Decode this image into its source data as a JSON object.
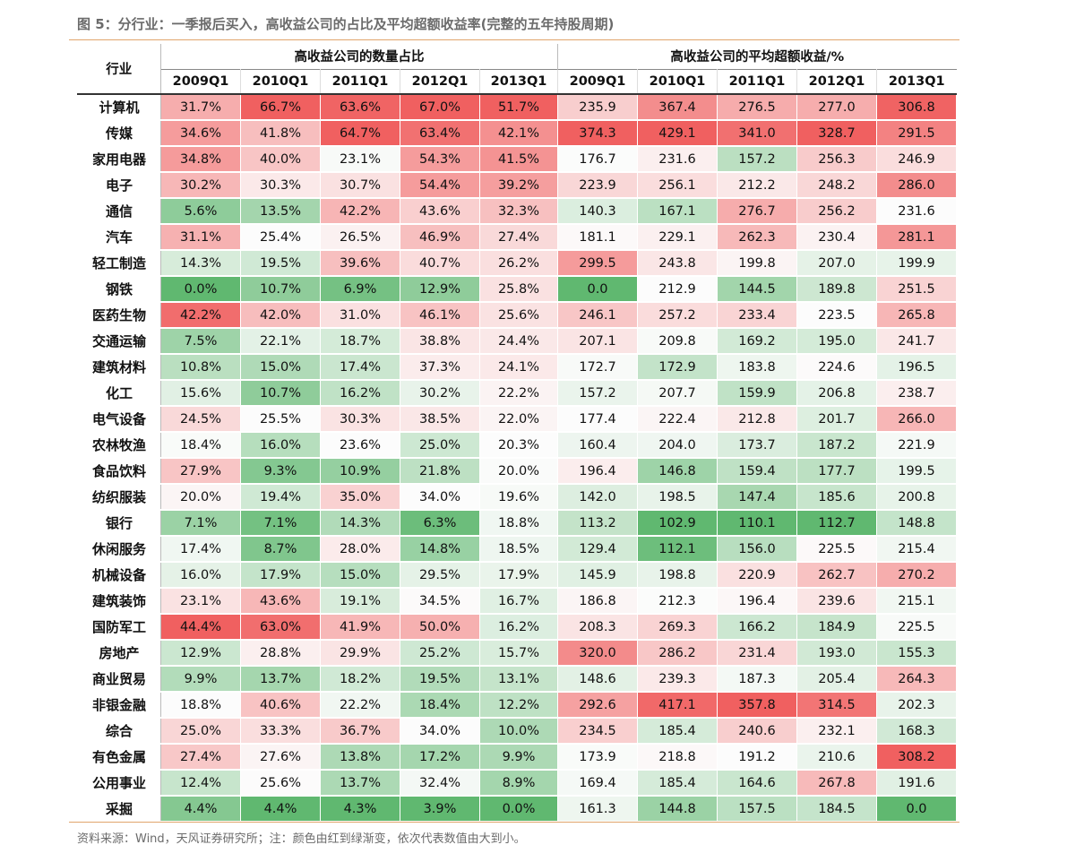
{
  "title": "图 5：分行业：一季报后买入，高收益公司的占比及平均超额收益率(完整的五年持股周期)",
  "source": "资料来源：Wind，天风证券研究所；注：颜色由红到绿渐变，依次代表数值由大到小。",
  "table": {
    "industry_header": "行业",
    "group1": "高收益公司的数量占比",
    "group2": "高收益公司的平均超额收益/%",
    "years": [
      "2009Q1",
      "2010Q1",
      "2011Q1",
      "2012Q1",
      "2013Q1"
    ],
    "rows": [
      {
        "name": "计算机",
        "ratio": [
          "31.7%",
          "66.7%",
          "63.6%",
          "67.0%",
          "51.7%"
        ],
        "excess": [
          "235.9",
          "367.4",
          "276.5",
          "277.0",
          "306.8"
        ]
      },
      {
        "name": "传媒",
        "ratio": [
          "34.6%",
          "41.8%",
          "64.7%",
          "63.4%",
          "42.1%"
        ],
        "excess": [
          "374.3",
          "429.1",
          "341.0",
          "328.7",
          "291.5"
        ]
      },
      {
        "name": "家用电器",
        "ratio": [
          "34.8%",
          "40.0%",
          "23.1%",
          "54.3%",
          "41.5%"
        ],
        "excess": [
          "176.7",
          "231.6",
          "157.2",
          "256.3",
          "246.9"
        ]
      },
      {
        "name": "电子",
        "ratio": [
          "30.2%",
          "30.3%",
          "30.7%",
          "54.4%",
          "39.2%"
        ],
        "excess": [
          "223.9",
          "256.1",
          "212.2",
          "248.2",
          "286.0"
        ]
      },
      {
        "name": "通信",
        "ratio": [
          "5.6%",
          "13.5%",
          "42.2%",
          "43.6%",
          "32.3%"
        ],
        "excess": [
          "140.3",
          "167.1",
          "276.7",
          "256.2",
          "231.6"
        ]
      },
      {
        "name": "汽车",
        "ratio": [
          "31.1%",
          "25.4%",
          "26.5%",
          "46.9%",
          "27.4%"
        ],
        "excess": [
          "181.1",
          "229.1",
          "262.3",
          "230.4",
          "281.1"
        ]
      },
      {
        "name": "轻工制造",
        "ratio": [
          "14.3%",
          "19.5%",
          "39.6%",
          "40.7%",
          "26.2%"
        ],
        "excess": [
          "299.5",
          "243.8",
          "199.8",
          "207.0",
          "199.9"
        ]
      },
      {
        "name": "钢铁",
        "ratio": [
          "0.0%",
          "10.7%",
          "6.9%",
          "12.9%",
          "25.8%"
        ],
        "excess": [
          "0.0",
          "212.9",
          "144.5",
          "189.8",
          "251.5"
        ]
      },
      {
        "name": "医药生物",
        "ratio": [
          "42.2%",
          "42.0%",
          "31.0%",
          "46.1%",
          "25.6%"
        ],
        "excess": [
          "246.1",
          "257.2",
          "233.4",
          "223.5",
          "265.8"
        ]
      },
      {
        "name": "交通运输",
        "ratio": [
          "7.5%",
          "22.1%",
          "18.7%",
          "38.8%",
          "24.4%"
        ],
        "excess": [
          "207.1",
          "209.8",
          "169.2",
          "195.0",
          "241.7"
        ]
      },
      {
        "name": "建筑材料",
        "ratio": [
          "10.8%",
          "15.0%",
          "17.4%",
          "37.3%",
          "24.1%"
        ],
        "excess": [
          "172.7",
          "172.9",
          "183.8",
          "224.6",
          "196.5"
        ]
      },
      {
        "name": "化工",
        "ratio": [
          "15.6%",
          "10.7%",
          "16.2%",
          "30.2%",
          "22.2%"
        ],
        "excess": [
          "157.2",
          "207.7",
          "159.9",
          "206.8",
          "238.7"
        ]
      },
      {
        "name": "电气设备",
        "ratio": [
          "24.5%",
          "25.5%",
          "30.3%",
          "38.5%",
          "22.0%"
        ],
        "excess": [
          "177.4",
          "222.4",
          "212.8",
          "201.7",
          "266.0"
        ]
      },
      {
        "name": "农林牧渔",
        "ratio": [
          "18.4%",
          "16.0%",
          "23.6%",
          "25.0%",
          "20.3%"
        ],
        "excess": [
          "160.4",
          "204.0",
          "173.7",
          "187.2",
          "221.9"
        ]
      },
      {
        "name": "食品饮料",
        "ratio": [
          "27.9%",
          "9.3%",
          "10.9%",
          "21.8%",
          "20.0%"
        ],
        "excess": [
          "196.4",
          "146.8",
          "159.4",
          "177.7",
          "199.5"
        ]
      },
      {
        "name": "纺织服装",
        "ratio": [
          "20.0%",
          "19.4%",
          "35.0%",
          "34.0%",
          "19.6%"
        ],
        "excess": [
          "142.0",
          "198.5",
          "147.4",
          "185.6",
          "200.8"
        ]
      },
      {
        "name": "银行",
        "ratio": [
          "7.1%",
          "7.1%",
          "14.3%",
          "6.3%",
          "18.8%"
        ],
        "excess": [
          "113.2",
          "102.9",
          "110.1",
          "112.7",
          "148.8"
        ]
      },
      {
        "name": "休闲服务",
        "ratio": [
          "17.4%",
          "8.7%",
          "28.0%",
          "14.8%",
          "18.5%"
        ],
        "excess": [
          "129.4",
          "112.1",
          "156.0",
          "225.5",
          "215.4"
        ]
      },
      {
        "name": "机械设备",
        "ratio": [
          "16.0%",
          "17.9%",
          "15.0%",
          "29.5%",
          "17.9%"
        ],
        "excess": [
          "145.9",
          "198.8",
          "220.9",
          "262.7",
          "270.2"
        ]
      },
      {
        "name": "建筑装饰",
        "ratio": [
          "23.1%",
          "43.6%",
          "19.1%",
          "34.5%",
          "16.7%"
        ],
        "excess": [
          "186.8",
          "212.3",
          "196.4",
          "239.6",
          "215.1"
        ]
      },
      {
        "name": "国防军工",
        "ratio": [
          "44.4%",
          "63.0%",
          "41.9%",
          "50.0%",
          "16.2%"
        ],
        "excess": [
          "208.3",
          "269.3",
          "166.2",
          "184.9",
          "225.5"
        ]
      },
      {
        "name": "房地产",
        "ratio": [
          "12.9%",
          "28.8%",
          "29.9%",
          "25.2%",
          "15.7%"
        ],
        "excess": [
          "320.0",
          "286.2",
          "231.4",
          "193.0",
          "155.3"
        ]
      },
      {
        "name": "商业贸易",
        "ratio": [
          "9.9%",
          "13.7%",
          "18.2%",
          "19.5%",
          "13.1%"
        ],
        "excess": [
          "148.6",
          "239.3",
          "187.3",
          "205.4",
          "264.3"
        ]
      },
      {
        "name": "非银金融",
        "ratio": [
          "18.8%",
          "40.6%",
          "22.2%",
          "18.4%",
          "12.2%"
        ],
        "excess": [
          "292.6",
          "417.1",
          "357.8",
          "314.5",
          "202.3"
        ]
      },
      {
        "name": "综合",
        "ratio": [
          "25.0%",
          "33.3%",
          "36.7%",
          "34.0%",
          "10.0%"
        ],
        "excess": [
          "234.5",
          "185.4",
          "240.6",
          "232.1",
          "168.3"
        ]
      },
      {
        "name": "有色金属",
        "ratio": [
          "27.4%",
          "27.6%",
          "13.8%",
          "17.2%",
          "9.9%"
        ],
        "excess": [
          "173.9",
          "218.8",
          "191.2",
          "210.6",
          "308.2"
        ]
      },
      {
        "name": "公用事业",
        "ratio": [
          "12.4%",
          "25.6%",
          "13.7%",
          "32.4%",
          "8.9%"
        ],
        "excess": [
          "169.4",
          "185.4",
          "164.6",
          "267.8",
          "191.6"
        ]
      },
      {
        "name": "采掘",
        "ratio": [
          "4.4%",
          "4.4%",
          "4.3%",
          "3.9%",
          "0.0%"
        ],
        "excess": [
          "161.3",
          "144.8",
          "157.5",
          "184.5",
          "0.0"
        ]
      }
    ]
  }
}
